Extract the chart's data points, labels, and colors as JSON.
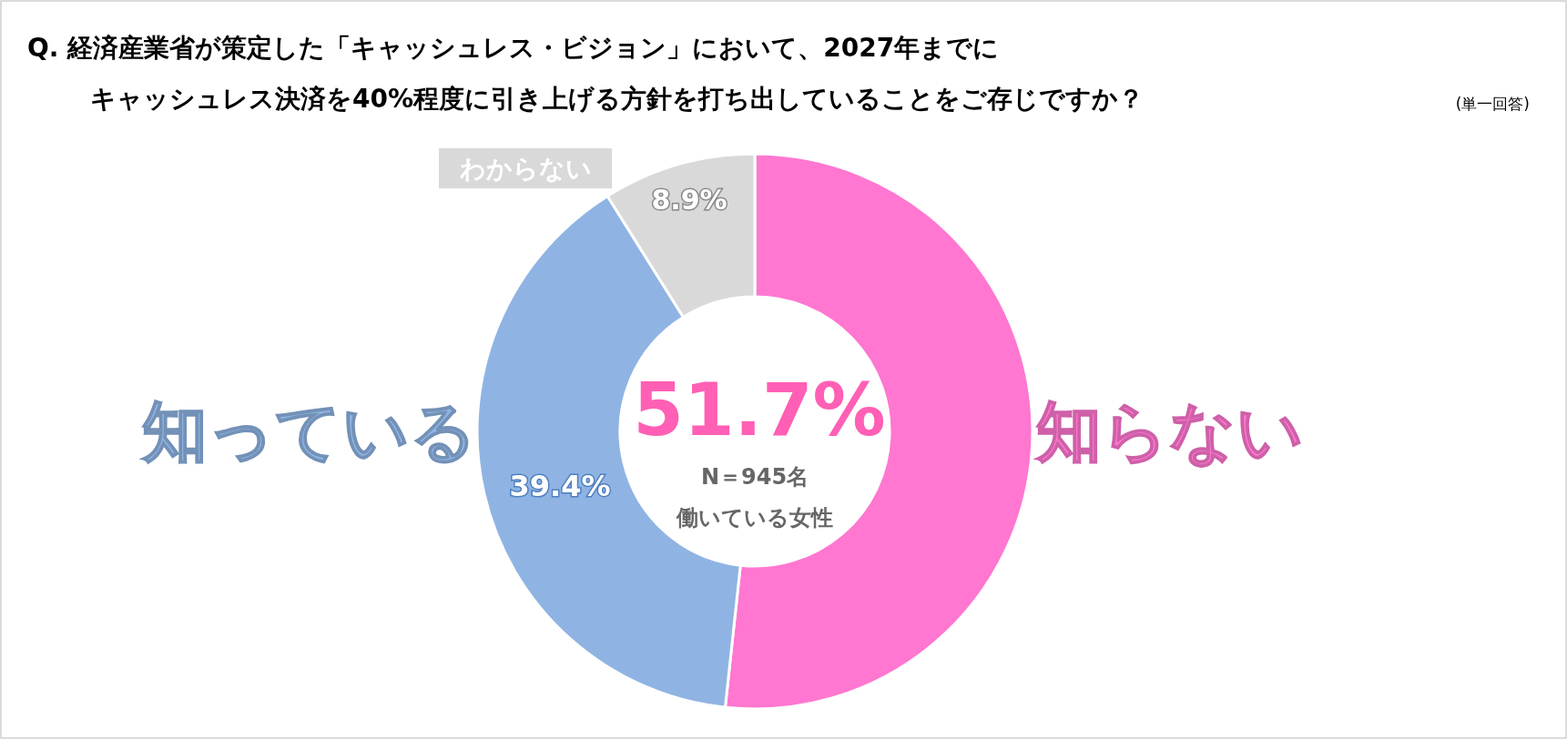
{
  "chart_data": {
    "type": "donut",
    "title": "Q.  経済産業省が策定した「キャッシュレス・ビジョン」において、2027年までにキャッシュレス決済を40%程度に引き上げる方針を打ち出していることをご存じですか？",
    "subtitle": "(単一回答)",
    "categories": [
      "知らない",
      "知っている",
      "わからない"
    ],
    "values": [
      51.7,
      39.4,
      8.9
    ],
    "colors": [
      "#ff77d0",
      "#8fb4e3",
      "#d9d9d9"
    ],
    "value_labels": [
      "51.7%",
      "39.4%",
      "8.9%"
    ],
    "legend": false,
    "annotations": [
      "N＝945名",
      "働いている女性"
    ]
  }
}
